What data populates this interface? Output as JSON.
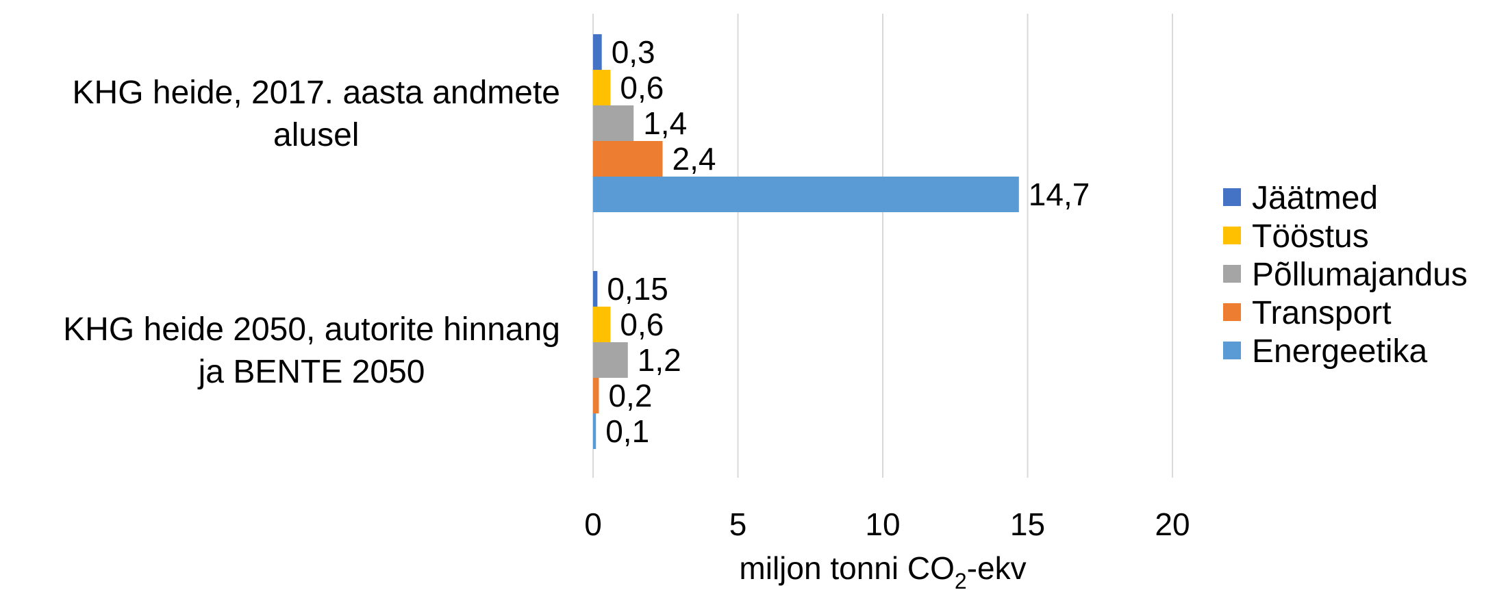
{
  "chart_data": {
    "type": "bar",
    "orientation": "horizontal",
    "categories": [
      [
        "KHG heide, 2017. aasta andmete",
        "alusel"
      ],
      [
        "KHG heide 2050, autorite hinnang",
        "ja BENTE 2050"
      ]
    ],
    "series": [
      {
        "name": "Jäätmed",
        "color": "#4472c4",
        "values": [
          0.3,
          0.15
        ],
        "labels": [
          "0,3",
          "0,15"
        ]
      },
      {
        "name": "Tööstus",
        "color": "#ffc000",
        "values": [
          0.6,
          0.6
        ],
        "labels": [
          "0,6",
          "0,6"
        ]
      },
      {
        "name": "Põllumajandus",
        "color": "#a5a5a5",
        "values": [
          1.4,
          1.2
        ],
        "labels": [
          "1,4",
          "1,2"
        ]
      },
      {
        "name": "Transport",
        "color": "#ed7d31",
        "values": [
          2.4,
          0.2
        ],
        "labels": [
          "2,4",
          "0,2"
        ]
      },
      {
        "name": "Energeetika",
        "color": "#5b9bd5",
        "values": [
          14.7,
          0.1
        ],
        "labels": [
          "14,7",
          "0,1"
        ]
      }
    ],
    "xlim": [
      0,
      20
    ],
    "xticks": [
      0,
      5,
      10,
      15,
      20
    ],
    "xtick_labels": [
      "0",
      "5",
      "10",
      "15",
      "20"
    ],
    "xlabel": {
      "main": "miljon tonni CO",
      "sub": "2",
      "suffix": "-ekv"
    },
    "grid": true,
    "legend_position": "right"
  }
}
